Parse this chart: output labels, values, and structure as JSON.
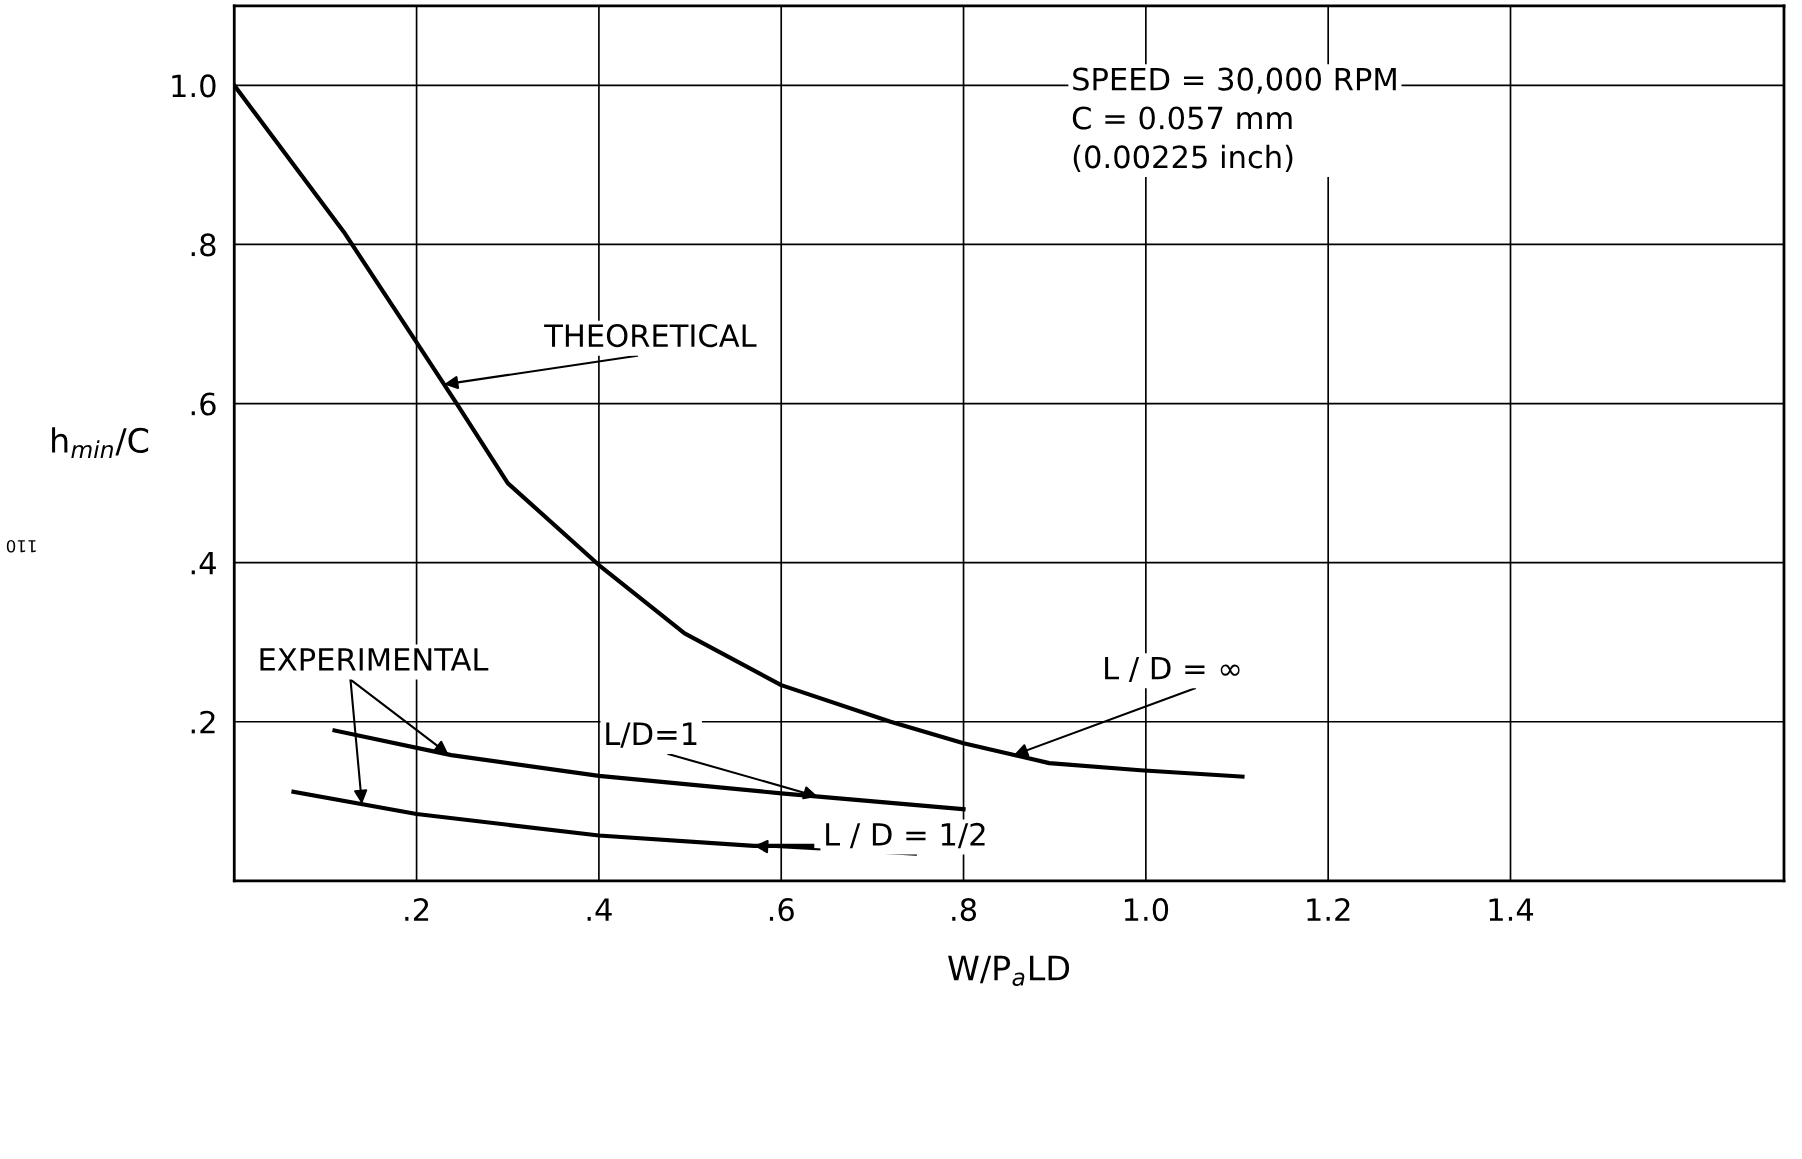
{
  "chart_data": {
    "type": "line",
    "xlabel": "W/P$_{a}$LD",
    "ylabel": "h$_{min}$/C",
    "xlim": [
      0,
      1.7
    ],
    "ylim": [
      0,
      1.1
    ],
    "xticks": [
      {
        "value": 0.2,
        "label": ".2"
      },
      {
        "value": 0.4,
        "label": ".4"
      },
      {
        "value": 0.6,
        "label": ".6"
      },
      {
        "value": 0.8,
        "label": ".8"
      },
      {
        "value": 1.0,
        "label": "1.0"
      },
      {
        "value": 1.2,
        "label": "1.2"
      },
      {
        "value": 1.4,
        "label": "1.4"
      }
    ],
    "yticks": [
      {
        "value": 0.2,
        "label": ".2"
      },
      {
        "value": 0.4,
        "label": ".4"
      },
      {
        "value": 0.6,
        "label": ".6"
      },
      {
        "value": 0.8,
        "label": ".8"
      },
      {
        "value": 1.0,
        "label": "1.0"
      }
    ],
    "grid": true,
    "marker": "none",
    "line_style": "solid",
    "legend": false,
    "series": [
      {
        "color": "#000000",
        "x": [
          0,
          0.12,
          0.2,
          0.244,
          0.3,
          0.4,
          0.494,
          0.6,
          0.72,
          0.8,
          0.894,
          0.994,
          1.106
        ],
        "values": [
          1.0,
          0.816,
          0.677,
          0.6,
          0.5,
          0.397,
          0.311,
          0.246,
          0.2,
          0.173,
          0.148,
          0.139,
          0.131
        ]
      },
      {
        "color": "#000000",
        "x": [
          0.11,
          0.238,
          0.4,
          0.6,
          0.8
        ],
        "values": [
          0.189,
          0.158,
          0.132,
          0.11,
          0.09
        ]
      },
      {
        "color": "#000000",
        "x": [
          0.065,
          0.2,
          0.4,
          0.57,
          0.634
        ],
        "values": [
          0.112,
          0.084,
          0.057,
          0.044,
          0.044
        ]
      }
    ],
    "annotations": [
      {
        "text": "THEORETICAL",
        "x": 0.23,
        "y": 0.624
      },
      {
        "text": "EXPERIMENTAL",
        "x": 0.235,
        "y": 0.159
      },
      {
        "text": "L / D = ∞",
        "x": 0.855,
        "y": 0.158
      },
      {
        "text": "L/D=1",
        "x": 0.64,
        "y": 0.106
      },
      {
        "text": "L / D = 1/2",
        "x": 0.57,
        "y": 0.044
      },
      "SPEED = 30,000 RPM\nC = 0.057 mm\n(0.00225 inch)",
      "110"
    ]
  }
}
